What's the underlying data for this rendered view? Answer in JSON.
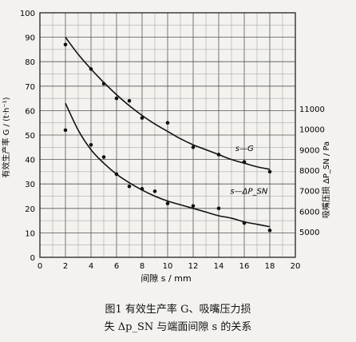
{
  "chart_data": {
    "type": "scatter",
    "xlabel": "间隙 s / mm",
    "ylabel_left": "有效生产率 G / (t·h⁻¹)",
    "ylabel_right": "吸嘴压损 ΔP_SN / Pa",
    "xlim": [
      0,
      20
    ],
    "ylim_left": [
      0,
      100
    ],
    "ylim_right": [
      5000,
      12000
    ],
    "x_ticks": [
      "0",
      "2",
      "4",
      "6",
      "8",
      "10",
      "12",
      "14",
      "16",
      "18",
      "20"
    ],
    "y_ticks_left": [
      "0",
      "10",
      "20",
      "30",
      "40",
      "50",
      "60",
      "70",
      "80",
      "90",
      "100"
    ],
    "y_ticks_right": [
      "5000",
      "6000",
      "7000",
      "8000",
      "9000",
      "10000",
      "11000"
    ],
    "grid": true,
    "series": [
      {
        "name": "s—G",
        "axis": "left",
        "points_x": [
          2,
          4,
          5,
          6,
          7,
          8,
          10,
          12,
          14,
          16,
          18
        ],
        "points_y": [
          87,
          77,
          71,
          65,
          64,
          57,
          55,
          45,
          42,
          39,
          35
        ],
        "fit_x": [
          2,
          3,
          4,
          5,
          6,
          7,
          8,
          9,
          10,
          11,
          12,
          13,
          14,
          15,
          16,
          17,
          18
        ],
        "fit_y": [
          90,
          83,
          77,
          71.5,
          66.5,
          62,
          58,
          54.5,
          51.5,
          48.5,
          46,
          44,
          42,
          40,
          38.5,
          37,
          36
        ]
      },
      {
        "name": "s—ΔP_SN",
        "axis": "left",
        "points_x": [
          2,
          4,
          5,
          6,
          7,
          8,
          9,
          10,
          12,
          14,
          16,
          18
        ],
        "points_y": [
          52,
          46,
          41,
          34,
          29,
          28,
          27,
          22,
          21,
          20,
          14,
          11
        ],
        "fit_x": [
          2,
          3,
          4,
          5,
          6,
          7,
          8,
          9,
          10,
          11,
          12,
          13,
          14,
          15,
          16,
          17,
          18
        ],
        "fit_y": [
          63,
          52,
          44,
          38.5,
          34,
          30.5,
          27.5,
          25,
          23,
          21.5,
          20,
          18.5,
          17,
          16,
          14.5,
          13.5,
          12.5
        ]
      }
    ]
  },
  "caption": {
    "line1": "图1  有效生产率 G、吸嘴压力损",
    "line2": "失 Δp_SN 与端面间隙 s 的关系"
  }
}
